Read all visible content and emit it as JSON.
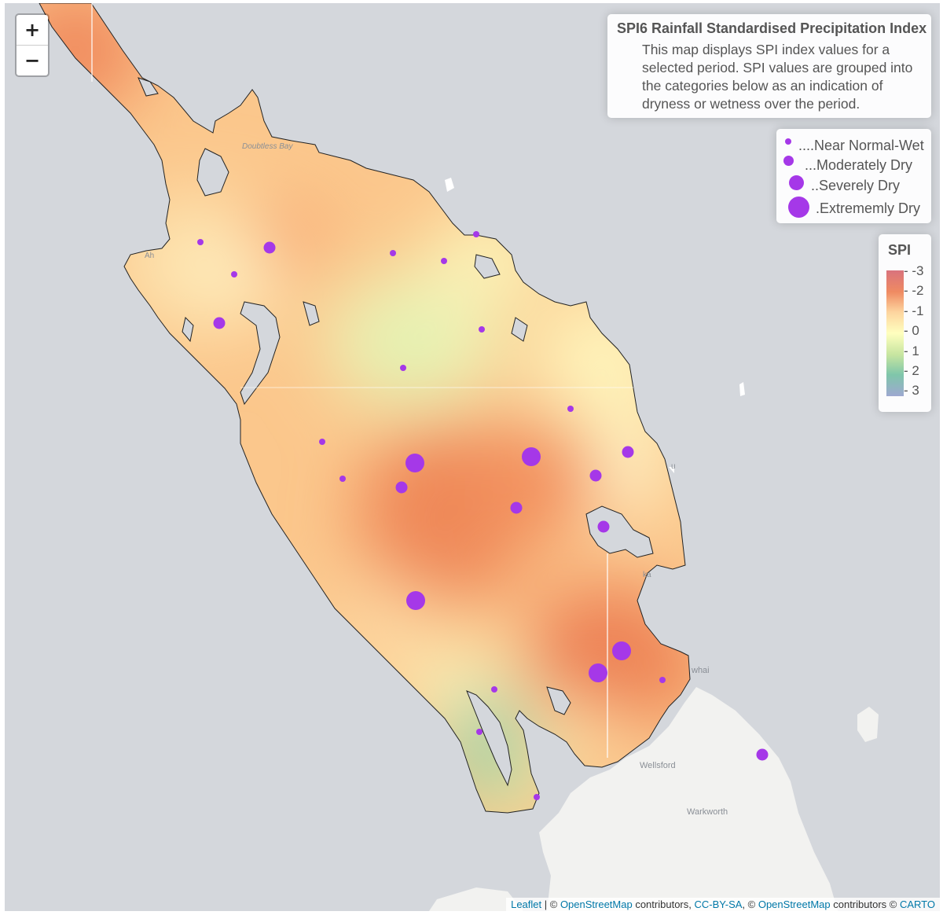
{
  "zoom": {
    "in_label": "+",
    "out_label": "−"
  },
  "info": {
    "title": "SPI6 Rainfall Standardised Precipitation Index",
    "description": "This map displays SPI index values for a selected period. SPI values are grouped into the categories below as an indication of dryness or wetness over the period."
  },
  "size_legend": [
    {
      "label": "....Near Normal-Wet"
    },
    {
      "label": "...Moderately Dry"
    },
    {
      "label": "..Severely Dry"
    },
    {
      "label": ".Extrememly Dry"
    }
  ],
  "spi_legend": {
    "title": "SPI",
    "ticks": [
      "-3",
      "-2",
      "-1",
      "0",
      "1",
      "2",
      "3"
    ],
    "colors": [
      "#d9737d",
      "#ef8a62",
      "#fdd49e",
      "#ffffbf",
      "#c7e5a0",
      "#7fc6aa",
      "#9ea8d1"
    ]
  },
  "basemap_labels": {
    "doubtless_bay": "Doubtless Bay",
    "wellsford": "Wellsford",
    "warkworth": "Warkworth",
    "ahipara": "Ah",
    "mangawhai": "whai",
    "tutukaka": "u",
    "whangarei_heads": "ka"
  },
  "attribution": {
    "leaflet": "Leaflet",
    "sep1": " | © ",
    "osm1": "OpenStreetMap",
    "contrib1": " contributors, ",
    "ccbysa": "CC-BY-SA",
    "sep2": ", © ",
    "osm2": "OpenStreetMap",
    "contrib2": " contributors © ",
    "carto": "CARTO"
  },
  "stations": [
    {
      "category": "Near Normal-Wet"
    },
    {
      "category": "Moderately Dry"
    },
    {
      "category": "Near Normal-Wet"
    },
    {
      "category": "Moderately Dry"
    },
    {
      "category": "Near Normal-Wet"
    },
    {
      "category": "Near Normal-Wet"
    },
    {
      "category": "Near Normal-Wet"
    },
    {
      "category": "Near Normal-Wet"
    },
    {
      "category": "Near Normal-Wet"
    },
    {
      "category": "Near Normal-Wet"
    },
    {
      "category": "Near Normal-Wet"
    },
    {
      "category": "Severely Dry"
    },
    {
      "category": "Severely Dry"
    },
    {
      "category": "Moderately Dry"
    },
    {
      "category": "Moderately Dry"
    },
    {
      "category": "Near Normal-Wet"
    },
    {
      "category": "Moderately Dry"
    },
    {
      "category": "Moderately Dry"
    },
    {
      "category": "Moderately Dry"
    },
    {
      "category": "Severely Dry"
    },
    {
      "category": "Severely Dry"
    },
    {
      "category": "Severely Dry"
    },
    {
      "category": "Near Normal-Wet"
    },
    {
      "category": "Near Normal-Wet"
    },
    {
      "category": "Near Normal-Wet"
    },
    {
      "category": "Near Normal-Wet"
    },
    {
      "category": "Moderately Dry"
    }
  ],
  "colors": {
    "marker": "#a538e8",
    "sea": "#d4d7dc",
    "land": "#f2f2f0"
  }
}
